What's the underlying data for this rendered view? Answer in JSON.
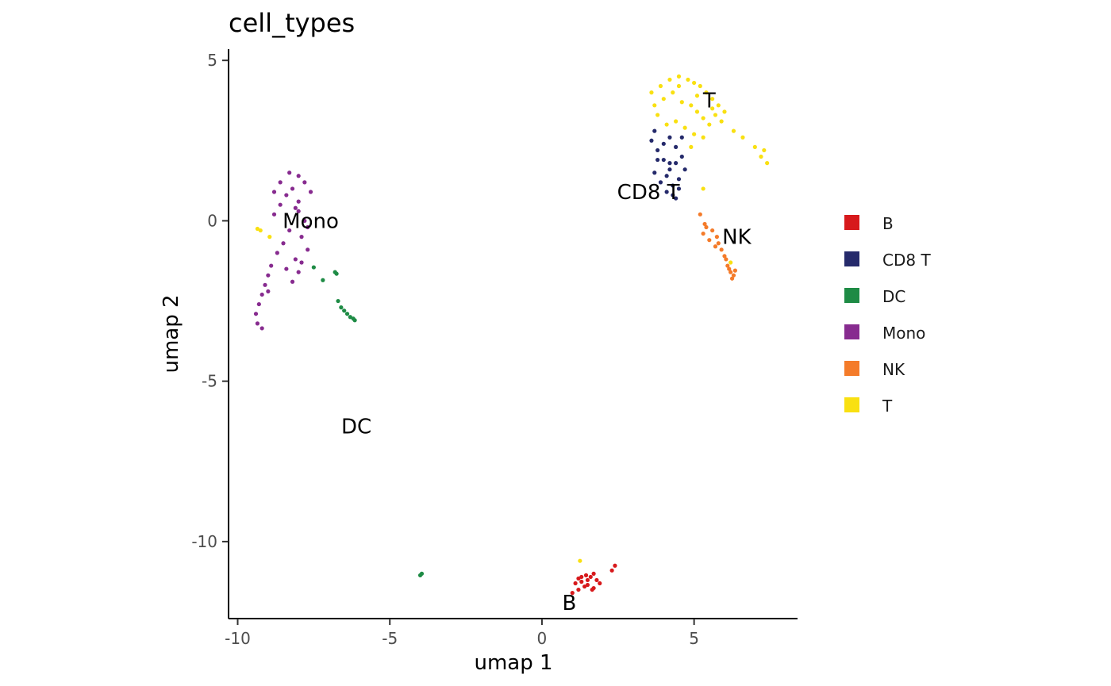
{
  "chart_data": {
    "type": "scatter",
    "title": "cell_types",
    "xlabel": "umap 1",
    "ylabel": "umap 2",
    "xlim": [
      -10.3,
      8.4
    ],
    "ylim": [
      -12.4,
      5.35
    ],
    "x_ticks": [
      -10,
      -5,
      0,
      5
    ],
    "x_tick_labels": [
      "-10",
      "-5",
      "0",
      "5"
    ],
    "y_ticks": [
      5,
      0,
      -5,
      -10
    ],
    "y_tick_labels": [
      "5",
      "0",
      "-5",
      "-10"
    ],
    "grid": false,
    "legend_position": "right",
    "series": [
      {
        "name": "B",
        "color": "#d7191c",
        "label_at": [
          0.9,
          -11.9
        ],
        "x": [
          1.1,
          1.3,
          1.5,
          1.7,
          1.9,
          1.2,
          1.4,
          1.6,
          1.8,
          1.0,
          1.3,
          1.5,
          1.7,
          2.3,
          2.4,
          1.2,
          1.45,
          1.65
        ],
        "y": [
          -11.3,
          -11.1,
          -11.2,
          -11.0,
          -11.3,
          -11.5,
          -11.4,
          -11.1,
          -11.2,
          -11.6,
          -11.25,
          -11.35,
          -11.45,
          -10.9,
          -10.75,
          -11.15,
          -11.05,
          -11.5
        ]
      },
      {
        "name": "CD8 T",
        "color": "#252a6b",
        "label_at": [
          3.5,
          0.9
        ],
        "x": [
          3.6,
          3.8,
          4.0,
          4.2,
          4.4,
          4.6,
          3.7,
          3.9,
          4.1,
          4.3,
          4.5,
          3.8,
          4.0,
          4.2,
          4.4,
          4.3,
          4.5,
          4.7,
          3.7,
          4.1,
          4.6,
          4.2,
          4.4
        ],
        "y": [
          2.5,
          2.2,
          1.9,
          1.6,
          1.8,
          2.0,
          1.5,
          1.2,
          1.4,
          1.1,
          1.3,
          1.9,
          2.4,
          2.6,
          2.3,
          0.8,
          1.0,
          1.6,
          2.8,
          0.9,
          2.6,
          1.8,
          0.7
        ]
      },
      {
        "name": "DC",
        "color": "#1e8b45",
        "label_at": [
          -6.1,
          -6.4
        ],
        "x": [
          -6.6,
          -6.5,
          -6.4,
          -6.3,
          -6.2,
          -6.15,
          -6.7,
          -7.2,
          -7.5,
          -3.95,
          -4.0,
          -6.75,
          -6.8
        ],
        "y": [
          -2.7,
          -2.8,
          -2.9,
          -3.0,
          -3.05,
          -3.1,
          -2.5,
          -1.85,
          -1.45,
          -11.0,
          -11.05,
          -1.65,
          -1.6
        ]
      },
      {
        "name": "Mono",
        "color": "#872b8f",
        "label_at": [
          -7.6,
          0.0
        ],
        "x": [
          -8.0,
          -7.8,
          -8.2,
          -8.4,
          -7.6,
          -8.6,
          -8.8,
          -8.0,
          -7.8,
          -8.3,
          -7.9,
          -8.5,
          -8.7,
          -8.1,
          -7.7,
          -8.9,
          -9.0,
          -8.4,
          -8.2,
          -8.0,
          -9.1,
          -9.2,
          -9.3,
          -9.4,
          -9.35,
          -9.2,
          -8.0,
          -8.3,
          -7.7,
          -8.6,
          -9.0,
          -8.8,
          -7.9,
          -8.1
        ],
        "y": [
          1.4,
          1.2,
          1.0,
          0.8,
          0.9,
          0.5,
          0.2,
          0.3,
          0.0,
          -0.3,
          -0.5,
          -0.7,
          -1.0,
          -1.2,
          -0.9,
          -1.4,
          -1.7,
          -1.5,
          -1.9,
          -1.6,
          -2.0,
          -2.3,
          -2.6,
          -2.9,
          -3.2,
          -3.35,
          0.6,
          1.5,
          -0.2,
          1.2,
          -2.2,
          0.9,
          -1.3,
          0.4
        ]
      },
      {
        "name": "NK",
        "color": "#f47b2a",
        "label_at": [
          6.4,
          -0.5
        ],
        "x": [
          5.3,
          5.5,
          5.7,
          5.9,
          6.0,
          6.1,
          6.2,
          6.3,
          5.4,
          5.6,
          5.8,
          6.05,
          6.15,
          6.25,
          5.2,
          5.35,
          5.75,
          6.35
        ],
        "y": [
          -0.4,
          -0.6,
          -0.8,
          -0.9,
          -1.1,
          -1.4,
          -1.6,
          -1.7,
          -0.2,
          -0.3,
          -0.7,
          -1.2,
          -1.5,
          -1.8,
          0.2,
          -0.1,
          -0.5,
          -1.55
        ]
      },
      {
        "name": "T",
        "color": "#f9e011",
        "label_at": [
          5.5,
          3.75
        ],
        "x": [
          3.6,
          3.9,
          4.2,
          4.5,
          4.8,
          5.0,
          5.2,
          5.4,
          5.6,
          5.8,
          6.0,
          3.7,
          4.0,
          4.3,
          4.6,
          4.9,
          5.1,
          5.3,
          5.5,
          5.7,
          4.4,
          4.7,
          5.0,
          5.3,
          6.3,
          6.6,
          7.0,
          7.2,
          7.4,
          7.3,
          -9.35,
          -9.25,
          -8.95,
          1.25,
          4.9,
          5.3,
          6.2,
          3.8,
          4.1,
          4.5,
          5.1,
          5.6,
          5.9
        ],
        "y": [
          4.0,
          4.2,
          4.4,
          4.5,
          4.4,
          4.3,
          4.2,
          4.0,
          3.8,
          3.6,
          3.4,
          3.6,
          3.8,
          4.0,
          3.7,
          3.6,
          3.4,
          3.2,
          3.0,
          3.3,
          3.1,
          2.9,
          2.7,
          2.6,
          2.8,
          2.6,
          2.3,
          2.0,
          1.8,
          2.2,
          -0.25,
          -0.3,
          -0.5,
          -10.6,
          2.3,
          1.0,
          -1.3,
          3.3,
          3.0,
          4.2,
          3.9,
          3.5,
          3.1
        ]
      }
    ]
  }
}
